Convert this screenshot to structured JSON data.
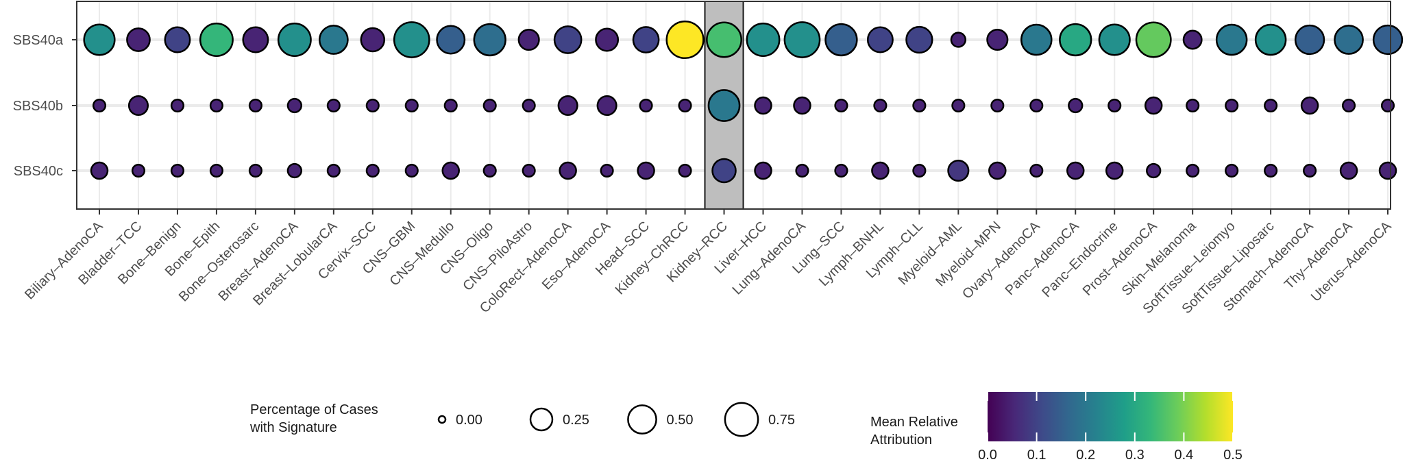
{
  "chart_data": {
    "type": "bubble",
    "signatures": [
      "SBS40a",
      "SBS40b",
      "SBS40c"
    ],
    "cancer_types": [
      "Biliary-AdenoCA",
      "Bladder-TCC",
      "Bone-Benign",
      "Bone-Epith",
      "Bone-Osterosarc",
      "Breast-AdenoCA",
      "Breast-LobularCA",
      "Cervix-SCC",
      "CNS-GBM",
      "CNS-Medullo",
      "CNS-Oligo",
      "CNS-PiloAstro",
      "ColoRect-AdenoCA",
      "Eso-AdenoCA",
      "Head-SCC",
      "Kidney-ChRCC",
      "Kidney-RCC",
      "Liver-HCC",
      "Lung-AdenoCA",
      "Lung-SCC",
      "Lymph-BNHL",
      "Lymph-CLL",
      "Myeloid-AML",
      "Myeloid-MPN",
      "Ovary-AdenoCA",
      "Panc-AdenoCA",
      "Panc-Endocrine",
      "Prost-AdenoCA",
      "Skin-Melanoma",
      "SoftTissue-Leiomyo",
      "SoftTissue-Liposarc",
      "Stomach-AdenoCA",
      "Thy-AdenoCA",
      "Uterus-AdenoCA"
    ],
    "highlighted_category": "Kidney-RCC",
    "percentage": {
      "SBS40a": [
        0.62,
        0.28,
        0.36,
        0.72,
        0.36,
        0.72,
        0.5,
        0.3,
        0.88,
        0.48,
        0.66,
        0.2,
        0.44,
        0.26,
        0.38,
        0.98,
        0.84,
        0.72,
        0.88,
        0.66,
        0.36,
        0.4,
        0.06,
        0.2,
        0.6,
        0.66,
        0.62,
        0.84,
        0.14,
        0.6,
        0.6,
        0.52,
        0.5,
        0.52
      ],
      "SBS40b": [
        0.03,
        0.16,
        0.03,
        0.03,
        0.03,
        0.05,
        0.03,
        0.03,
        0.03,
        0.03,
        0.03,
        0.03,
        0.16,
        0.16,
        0.03,
        0.03,
        0.64,
        0.1,
        0.1,
        0.03,
        0.03,
        0.03,
        0.03,
        0.03,
        0.03,
        0.05,
        0.03,
        0.1,
        0.03,
        0.03,
        0.03,
        0.1,
        0.03,
        0.03
      ],
      "SBS40c": [
        0.1,
        0.03,
        0.03,
        0.03,
        0.03,
        0.05,
        0.03,
        0.03,
        0.03,
        0.1,
        0.03,
        0.03,
        0.1,
        0.03,
        0.1,
        0.03,
        0.3,
        0.1,
        0.03,
        0.03,
        0.1,
        0.03,
        0.2,
        0.1,
        0.03,
        0.1,
        0.1,
        0.05,
        0.03,
        0.03,
        0.03,
        0.03,
        0.1,
        0.1
      ]
    },
    "attribution": {
      "SBS40a": [
        0.25,
        0.05,
        0.1,
        0.33,
        0.05,
        0.25,
        0.2,
        0.05,
        0.25,
        0.15,
        0.18,
        0.05,
        0.1,
        0.05,
        0.1,
        0.5,
        0.35,
        0.25,
        0.25,
        0.15,
        0.1,
        0.1,
        0.05,
        0.05,
        0.2,
        0.3,
        0.25,
        0.38,
        0.05,
        0.2,
        0.25,
        0.15,
        0.18,
        0.15
      ],
      "SBS40b": [
        0.05,
        0.05,
        0.05,
        0.05,
        0.05,
        0.05,
        0.05,
        0.05,
        0.05,
        0.05,
        0.05,
        0.05,
        0.05,
        0.05,
        0.05,
        0.05,
        0.2,
        0.05,
        0.05,
        0.05,
        0.05,
        0.05,
        0.05,
        0.05,
        0.05,
        0.05,
        0.05,
        0.05,
        0.05,
        0.05,
        0.05,
        0.05,
        0.05,
        0.05
      ],
      "SBS40c": [
        0.05,
        0.05,
        0.05,
        0.05,
        0.05,
        0.05,
        0.05,
        0.05,
        0.05,
        0.05,
        0.05,
        0.05,
        0.05,
        0.05,
        0.05,
        0.05,
        0.1,
        0.05,
        0.05,
        0.05,
        0.05,
        0.05,
        0.08,
        0.05,
        0.05,
        0.05,
        0.05,
        0.05,
        0.05,
        0.05,
        0.05,
        0.05,
        0.05,
        0.05
      ]
    },
    "size_legend": {
      "title_line1": "Percentage of Cases",
      "title_line2": "with Signature",
      "values": [
        0.0,
        0.25,
        0.5,
        0.75
      ],
      "labels": [
        "0.00",
        "0.25",
        "0.50",
        "0.75"
      ]
    },
    "color_legend": {
      "title_line1": "Mean Relative",
      "title_line2": "Attribution",
      "range": [
        0,
        0.5
      ],
      "ticks": [
        0.0,
        0.1,
        0.2,
        0.3,
        0.4,
        0.5
      ],
      "tick_labels": [
        "0.0",
        "0.1",
        "0.2",
        "0.3",
        "0.4",
        "0.5"
      ],
      "colormap": "viridis"
    }
  }
}
